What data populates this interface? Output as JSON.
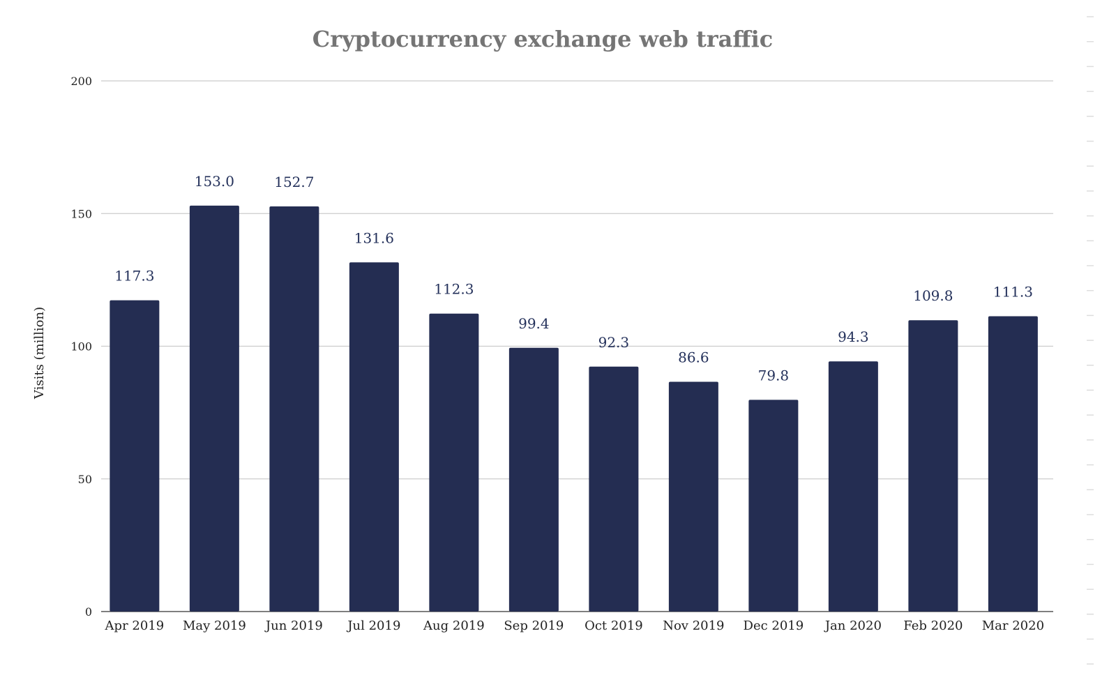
{
  "chart_data": {
    "type": "bar",
    "title": "Cryptocurrency exchange web traffic",
    "xlabel": "",
    "ylabel": "Visits (million)",
    "ylim": [
      0,
      200
    ],
    "yticks": [
      0,
      50,
      100,
      150,
      200
    ],
    "grid": true,
    "bar_color": "#242d52",
    "categories": [
      "Apr 2019",
      "May 2019",
      "Jun 2019",
      "Jul 2019",
      "Aug 2019",
      "Sep 2019",
      "Oct 2019",
      "Nov 2019",
      "Dec 2019",
      "Jan 2020",
      "Feb 2020",
      "Mar 2020"
    ],
    "values": [
      117.3,
      153.0,
      152.7,
      131.6,
      112.3,
      99.4,
      92.3,
      86.6,
      79.8,
      94.3,
      109.8,
      111.3
    ],
    "data_labels": [
      "117.3",
      "153.0",
      "152.7",
      "131.6",
      "112.3",
      "99.4",
      "92.3",
      "86.6",
      "79.8",
      "94.3",
      "109.8",
      "111.3"
    ]
  }
}
